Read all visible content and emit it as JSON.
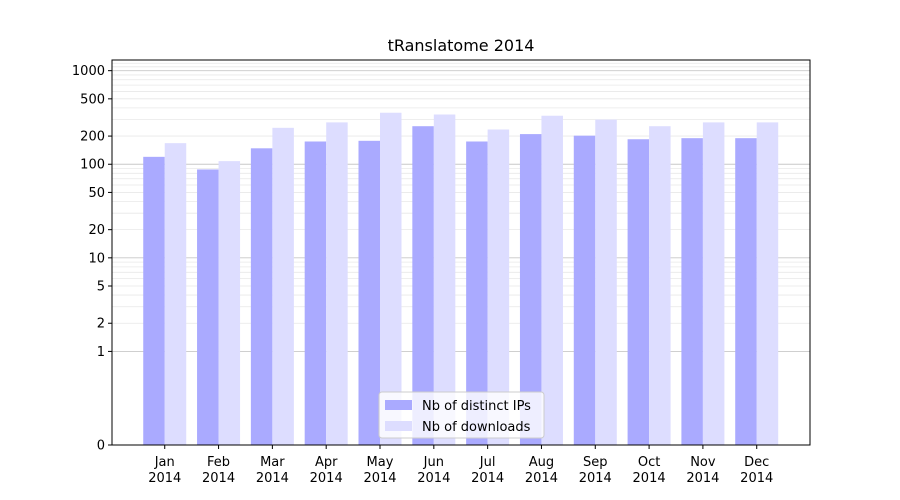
{
  "chart_data": {
    "type": "bar",
    "title": "tRanslatome 2014",
    "xlabel": "",
    "ylabel": "",
    "yscale": "symlog",
    "ylim": [
      0,
      1300
    ],
    "yticks": [
      0,
      1,
      2,
      5,
      10,
      20,
      50,
      100,
      200,
      500,
      1000
    ],
    "grid": true,
    "legend_position": "lower center",
    "categories": [
      [
        "Jan",
        "2014"
      ],
      [
        "Feb",
        "2014"
      ],
      [
        "Mar",
        "2014"
      ],
      [
        "Apr",
        "2014"
      ],
      [
        "May",
        "2014"
      ],
      [
        "Jun",
        "2014"
      ],
      [
        "Jul",
        "2014"
      ],
      [
        "Aug",
        "2014"
      ],
      [
        "Sep",
        "2014"
      ],
      [
        "Oct",
        "2014"
      ],
      [
        "Nov",
        "2014"
      ],
      [
        "Dec",
        "2014"
      ]
    ],
    "series": [
      {
        "name": "Nb of distinct IPs",
        "color": "#aaaaff",
        "values": [
          120,
          88,
          148,
          175,
          178,
          255,
          175,
          210,
          202,
          185,
          190,
          190
        ]
      },
      {
        "name": "Nb of downloads",
        "color": "#ddddff",
        "values": [
          168,
          108,
          245,
          280,
          355,
          340,
          235,
          330,
          300,
          255,
          280,
          280
        ]
      }
    ]
  }
}
